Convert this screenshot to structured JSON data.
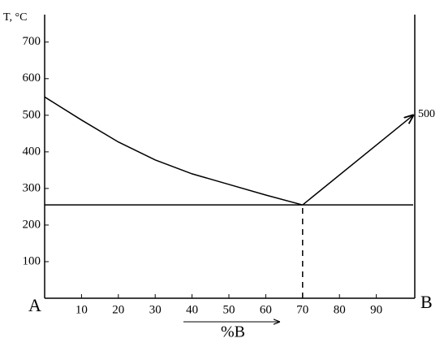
{
  "chart_data": {
    "type": "line",
    "ylabel": "T, °C",
    "xlabel": "%B",
    "annotations": [
      "A",
      "B",
      "500"
    ],
    "xlim": [
      0,
      100
    ],
    "ylim": [
      0,
      775
    ],
    "xticks": [
      10,
      20,
      30,
      40,
      50,
      60,
      70,
      80,
      90
    ],
    "yticks": [
      100,
      200,
      300,
      400,
      500,
      600,
      700
    ],
    "series": [
      {
        "color": "#000000",
        "x": [
          0,
          10,
          20,
          30,
          40,
          50,
          60,
          70
        ],
        "values": [
          550,
          487,
          427,
          378,
          340,
          311,
          282,
          255
        ]
      },
      {
        "color": "#000000",
        "x": [
          70,
          100
        ],
        "values": [
          255,
          500
        ],
        "arrow": true
      },
      {
        "color": "#000000",
        "x": [
          0,
          100
        ],
        "values": [
          255,
          255
        ]
      },
      {
        "color": "#000000",
        "x": [
          70,
          70
        ],
        "values": [
          0,
          255
        ],
        "dashed": true
      }
    ]
  }
}
